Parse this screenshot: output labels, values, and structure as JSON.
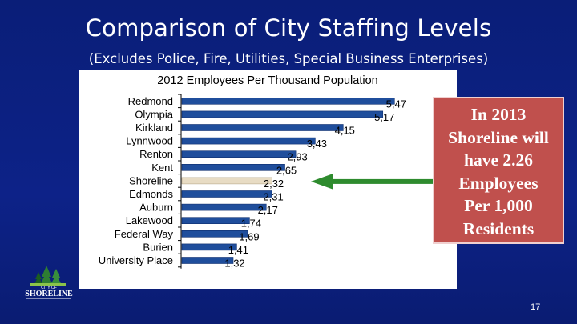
{
  "slide": {
    "title": "Comparison of City Staffing Levels",
    "subtitle": "(Excludes Police, Fire, Utilities, Special Business Enterprises)",
    "page_number": "17"
  },
  "callout": {
    "lines": [
      "In 2013",
      "Shoreline will",
      "have 2.26",
      "Employees",
      "Per 1,000",
      "Residents"
    ]
  },
  "logo": {
    "line1": "CITY OF",
    "line2": "SHORELINE"
  },
  "chart_data": {
    "type": "bar",
    "orientation": "horizontal",
    "title": "2012 Employees Per Thousand Population",
    "xlabel": "",
    "ylabel": "",
    "xlim": [
      0,
      6
    ],
    "categories": [
      "Redmond",
      "Olympia",
      "Kirkland",
      "Lynnwood",
      "Renton",
      "Kent",
      "Shoreline",
      "Edmonds",
      "Auburn",
      "Lakewood",
      "Federal Way",
      "Burien",
      "University Place"
    ],
    "values": [
      5.47,
      5.17,
      4.15,
      3.43,
      2.93,
      2.65,
      2.32,
      2.31,
      2.17,
      1.74,
      1.69,
      1.41,
      1.32
    ],
    "value_labels": [
      "5,47",
      "5,17",
      "4,15",
      "3,43",
      "2,93",
      "2,65",
      "2,32",
      "2,31",
      "2,17",
      "1,74",
      "1,69",
      "1,41",
      "1,32"
    ],
    "highlight_category": "Shoreline",
    "colors": {
      "bar": "#1f4e9c",
      "bar_highlight": "#e8dcc4",
      "arrow": "#2e8b2e",
      "axis": "#000000"
    },
    "grid": false,
    "legend": "none"
  }
}
